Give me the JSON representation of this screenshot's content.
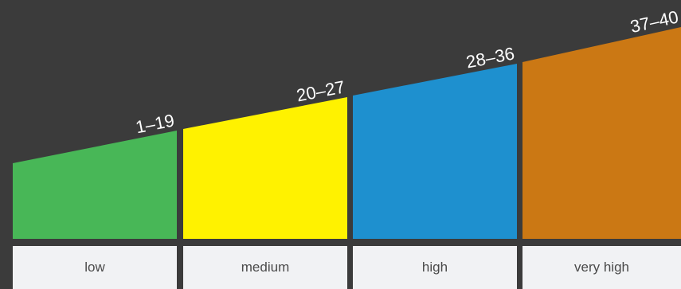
{
  "levels": [
    {
      "range": "1–19",
      "label": "low",
      "color": "#48b757"
    },
    {
      "range": "20–27",
      "label": "medium",
      "color": "#fff200"
    },
    {
      "range": "28–36",
      "label": "high",
      "color": "#1e90cf"
    },
    {
      "range": "37–40",
      "label": "very high",
      "color": "#cb7814"
    }
  ],
  "background_color": "#3b3b3b",
  "label_box_color": "#f1f2f4"
}
